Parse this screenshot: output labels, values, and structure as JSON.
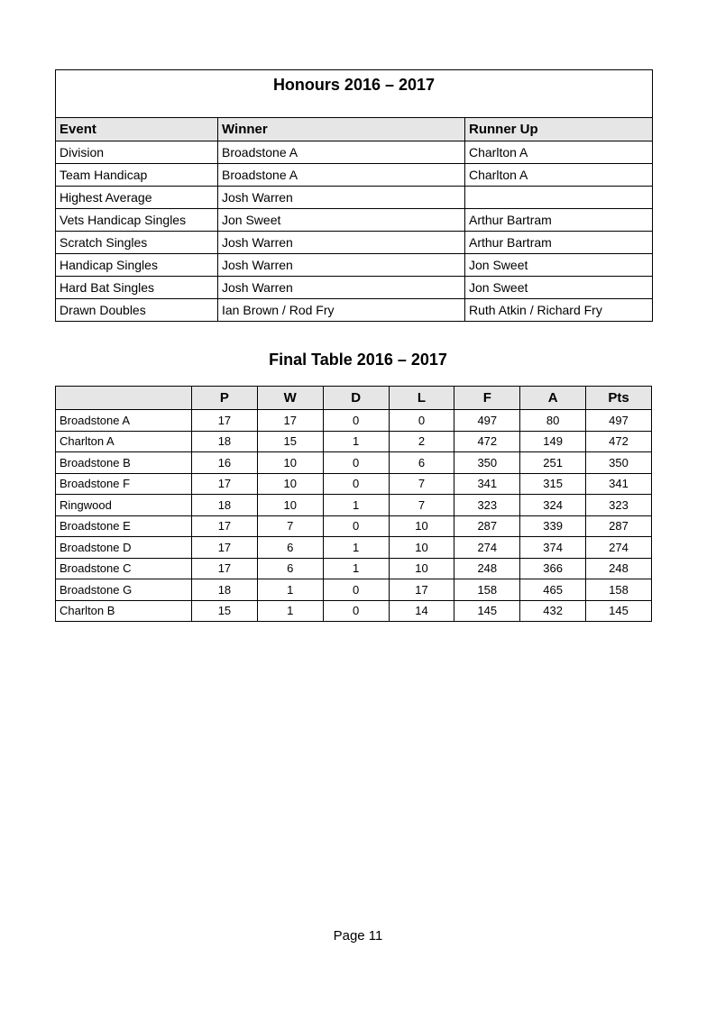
{
  "honours": {
    "title": "Honours 2016 – 2017",
    "headers": [
      "Event",
      "Winner",
      "Runner Up"
    ],
    "rows": [
      [
        "Division",
        "Broadstone A",
        "Charlton A"
      ],
      [
        "Team Handicap",
        "Broadstone A",
        "Charlton A"
      ],
      [
        "Highest Average",
        "Josh Warren",
        ""
      ],
      [
        "Vets Handicap Singles",
        "Jon Sweet",
        "Arthur Bartram"
      ],
      [
        "Scratch Singles",
        "Josh Warren",
        "Arthur Bartram"
      ],
      [
        "Handicap Singles",
        "Josh Warren",
        "Jon Sweet"
      ],
      [
        "Hard Bat Singles",
        "Josh Warren",
        "Jon Sweet"
      ],
      [
        "Drawn Doubles",
        "Ian Brown / Rod Fry",
        "Ruth Atkin / Richard Fry"
      ]
    ]
  },
  "final_table": {
    "title": "Final Table 2016 – 2017",
    "headers": [
      "",
      "P",
      "W",
      "D",
      "L",
      "F",
      "A",
      "Pts"
    ],
    "rows": [
      [
        "Broadstone A",
        "17",
        "17",
        "0",
        "0",
        "497",
        "80",
        "497"
      ],
      [
        "Charlton A",
        "18",
        "15",
        "1",
        "2",
        "472",
        "149",
        "472"
      ],
      [
        "Broadstone B",
        "16",
        "10",
        "0",
        "6",
        "350",
        "251",
        "350"
      ],
      [
        "Broadstone F",
        "17",
        "10",
        "0",
        "7",
        "341",
        "315",
        "341"
      ],
      [
        "Ringwood",
        "18",
        "10",
        "1",
        "7",
        "323",
        "324",
        "323"
      ],
      [
        "Broadstone E",
        "17",
        "7",
        "0",
        "10",
        "287",
        "339",
        "287"
      ],
      [
        "Broadstone D",
        "17",
        "6",
        "1",
        "10",
        "274",
        "374",
        "274"
      ],
      [
        "Broadstone C",
        "17",
        "6",
        "1",
        "10",
        "248",
        "366",
        "248"
      ],
      [
        "Broadstone G",
        "18",
        "1",
        "0",
        "17",
        "158",
        "465",
        "158"
      ],
      [
        "Charlton B",
        "15",
        "1",
        "0",
        "14",
        "145",
        "432",
        "145"
      ]
    ]
  },
  "footer": {
    "page": "Page 11"
  }
}
